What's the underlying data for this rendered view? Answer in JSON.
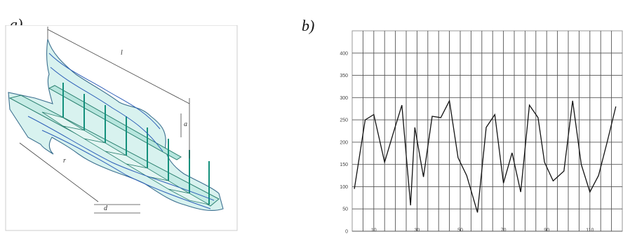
{
  "panels": {
    "a": {
      "label": "a)"
    },
    "b": {
      "label": "b)"
    }
  },
  "diagram_a": {
    "dimension_labels": [
      "l",
      "a",
      "r",
      "d"
    ]
  },
  "chart_data": {
    "type": "line",
    "title": "",
    "xlabel": "",
    "ylabel": "",
    "xlim": [
      0,
      125
    ],
    "ylim": [
      0,
      450
    ],
    "x_ticks": [
      10,
      30,
      50,
      70,
      90,
      110
    ],
    "y_ticks": [
      0,
      50,
      100,
      150,
      200,
      250,
      300,
      350,
      400
    ],
    "y_tick_labels": [
      "0",
      "50",
      "100",
      "150",
      "200",
      "250",
      "300",
      "350",
      "400"
    ],
    "grid": true,
    "series": [
      {
        "color": "#111111",
        "x": [
          1,
          6,
          10,
          15,
          19,
          23,
          27,
          29,
          33,
          37,
          41,
          45,
          49,
          53,
          58,
          62,
          66,
          70,
          74,
          78,
          82,
          86,
          89,
          93,
          98,
          102,
          106,
          110,
          114,
          118,
          122
        ],
        "y": [
          95,
          250,
          262,
          155,
          220,
          283,
          58,
          233,
          122,
          258,
          255,
          293,
          165,
          125,
          42,
          233,
          262,
          108,
          176,
          88,
          283,
          255,
          155,
          113,
          135,
          293,
          150,
          88,
          125,
          200,
          280
        ]
      }
    ]
  }
}
